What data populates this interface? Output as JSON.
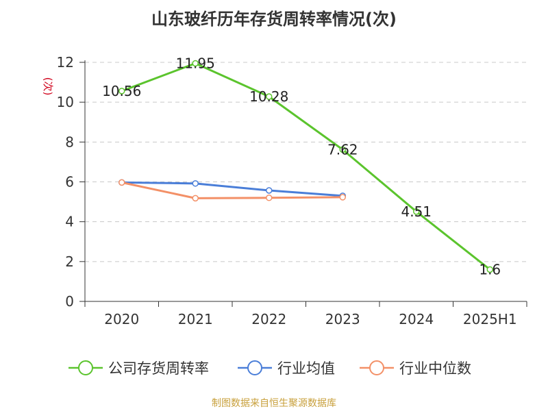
{
  "title": "山东玻纤历年存货周转率情况(次)",
  "source": "制图数据来自恒生聚源数据库",
  "chart_data": {
    "type": "line",
    "title": "山东玻纤历年存货周转率情况(次)",
    "ylabel": "(次)",
    "xlabel": "",
    "categories": [
      "2020",
      "2021",
      "2022",
      "2023",
      "2024",
      "2025H1"
    ],
    "yticks": [
      "0",
      "2",
      "4",
      "6",
      "8",
      "10",
      "12"
    ],
    "ylim": [
      0,
      12
    ],
    "grid": true,
    "legend_position": "bottom",
    "series": [
      {
        "name": "公司存货周转率",
        "color": "#5bc42d",
        "values": [
          10.56,
          11.95,
          10.28,
          7.62,
          4.51,
          1.6
        ],
        "labels": [
          "10.56",
          "11.95",
          "10.28",
          "7.62",
          "4.51",
          "1.6"
        ]
      },
      {
        "name": "行业均值",
        "color": "#4a7ed8",
        "values": [
          5.97,
          5.92,
          5.57,
          5.3,
          null,
          null
        ],
        "labels": []
      },
      {
        "name": "行业中位数",
        "color": "#f39067",
        "values": [
          5.97,
          5.18,
          5.2,
          5.23,
          null,
          null
        ],
        "labels": []
      }
    ]
  }
}
